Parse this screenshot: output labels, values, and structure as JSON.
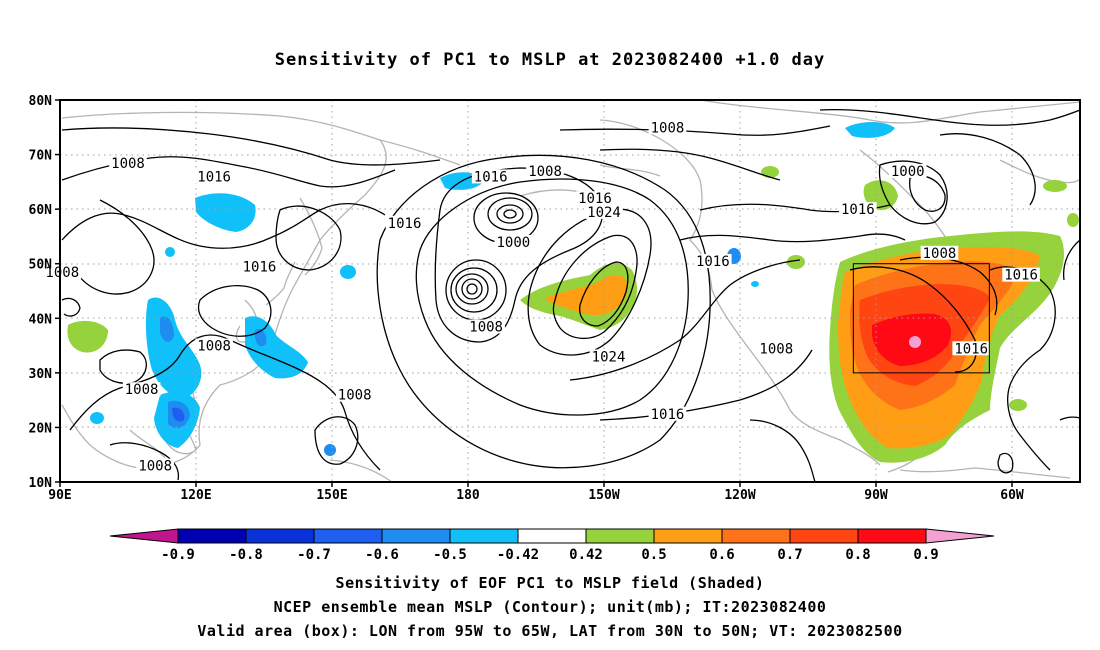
{
  "title": "Sensitivity of PC1 to MSLP at 2023082400 +1.0 day",
  "map": {
    "lat_labels": [
      "80N",
      "70N",
      "60N",
      "50N",
      "40N",
      "30N",
      "20N",
      "10N"
    ],
    "lon_labels": [
      "90E",
      "120E",
      "150E",
      "180",
      "150W",
      "120W",
      "90W",
      "60W"
    ],
    "contour_labels": [
      {
        "text": "1008",
        "lon": 105,
        "lat": 68.5
      },
      {
        "text": "1016",
        "lon": 124,
        "lat": 66
      },
      {
        "text": "1016",
        "lon": 134,
        "lat": 49.5
      },
      {
        "text": "1008",
        "lon": 124,
        "lat": 35
      },
      {
        "text": "1008",
        "lon": 90.5,
        "lat": 48.5
      },
      {
        "text": "1008",
        "lon": 108,
        "lat": 27
      },
      {
        "text": "1008",
        "lon": 111,
        "lat": 13
      },
      {
        "text": "1008",
        "lon": 155,
        "lat": 26
      },
      {
        "text": "1016",
        "lon": 166,
        "lat": 57.5
      },
      {
        "text": "1016",
        "lon": 185,
        "lat": 66
      },
      {
        "text": "1008",
        "lon": 197,
        "lat": 67
      },
      {
        "text": "1000",
        "lon": 190,
        "lat": 54
      },
      {
        "text": "1008",
        "lon": 184,
        "lat": 38.5
      },
      {
        "text": "1016",
        "lon": 208,
        "lat": 62
      },
      {
        "text": "1024",
        "lon": 210,
        "lat": 59.5
      },
      {
        "text": "1024",
        "lon": 211,
        "lat": 33
      },
      {
        "text": "1016",
        "lon": 224,
        "lat": 22.5
      },
      {
        "text": "1008",
        "lon": 224,
        "lat": 75
      },
      {
        "text": "1016",
        "lon": 234,
        "lat": 50.5
      },
      {
        "text": "1008",
        "lon": 248,
        "lat": 34.5
      },
      {
        "text": "1016",
        "lon": 266,
        "lat": 60
      },
      {
        "text": "1000",
        "lon": 277,
        "lat": 67
      },
      {
        "text": "1008",
        "lon": 284,
        "lat": 52
      },
      {
        "text": "1016",
        "lon": 302,
        "lat": 48
      },
      {
        "text": "1016",
        "lon": 291,
        "lat": 34.5
      }
    ],
    "valid_box": {
      "lon_min": -95,
      "lon_max": -65,
      "lat_min": 30,
      "lat_max": 50
    }
  },
  "colorbar": {
    "labels": [
      "-0.9",
      "-0.8",
      "-0.7",
      "-0.6",
      "-0.5",
      "-0.42",
      "0.42",
      "0.5",
      "0.6",
      "0.7",
      "0.8",
      "0.9"
    ],
    "colors": [
      "#0000b0",
      "#0a30d8",
      "#1e5ef0",
      "#1e8cf0",
      "#10c0f8",
      "#ffffff",
      "#96d23c",
      "#ff9e14",
      "#ff7318",
      "#ff4612",
      "#ff0a14"
    ],
    "low_color": "#c0158c",
    "high_color": "#f5a0d2"
  },
  "captions": {
    "line1": "Sensitivity of EOF PC1 to MSLP field (Shaded)",
    "line2": "NCEP ensemble mean MSLP (Contour); unit(mb); IT:2023082400",
    "line3": "Valid area (box): LON from 95W to 65W, LAT from 30N to 50N; VT: 2023082500"
  }
}
